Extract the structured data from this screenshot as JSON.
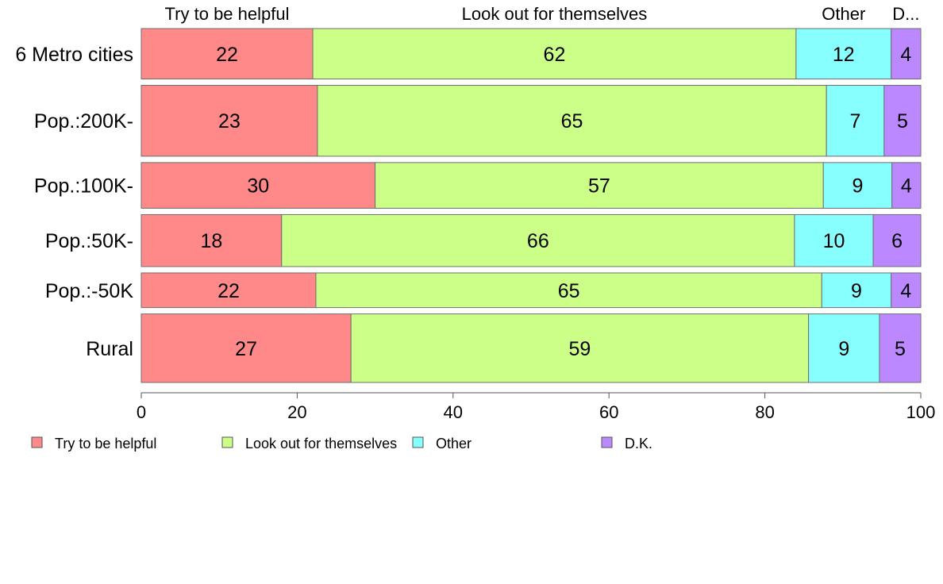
{
  "chart_data": {
    "type": "bar",
    "orientation": "horizontal",
    "stacked": true,
    "categories": [
      "6 Metro cities",
      "Pop.:200K-",
      "Pop.:100K-",
      "Pop.:50K-",
      "Pop.:-50K",
      "Rural"
    ],
    "series": [
      {
        "name": "Try to be helpful",
        "color": "#ff8888",
        "values": [
          22,
          22.6,
          30,
          18,
          22.4,
          26.9
        ]
      },
      {
        "name": "Look out for themselves",
        "color": "#ccff88",
        "values": [
          62,
          65.3,
          57.5,
          65.8,
          64.9,
          58.7
        ]
      },
      {
        "name": "Other",
        "color": "#88ffff",
        "values": [
          12.2,
          7.4,
          8.8,
          10.1,
          8.9,
          9.1
        ]
      },
      {
        "name": "D.K.",
        "color": "#bb88ff",
        "values": [
          3.8,
          4.7,
          3.7,
          6.1,
          3.8,
          5.3
        ]
      }
    ],
    "bar_labels": [
      [
        "22",
        "62",
        "12",
        "4"
      ],
      [
        "23",
        "65",
        "7",
        "5"
      ],
      [
        "30",
        "57",
        "9",
        "4"
      ],
      [
        "18",
        "66",
        "10",
        "6"
      ],
      [
        "22",
        "65",
        "9",
        "4"
      ],
      [
        "27",
        "59",
        "9",
        "5"
      ]
    ],
    "top_labels": [
      "Try to be helpful",
      "Look out for themselves",
      "Other",
      "D..."
    ],
    "row_weights": [
      0.64,
      0.9,
      0.58,
      0.66,
      0.44,
      0.87
    ],
    "xlim": [
      0,
      100
    ],
    "xticks": [
      0,
      20,
      40,
      60,
      80,
      100
    ],
    "legend_position": "bottom-left",
    "grid": false
  }
}
